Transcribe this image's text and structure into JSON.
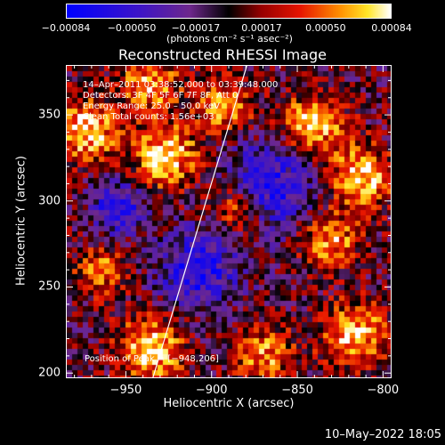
{
  "chart_data": {
    "type": "heatmap",
    "title": "Reconstructed RHESSI Image",
    "xlabel": "Heliocentric X (arcsec)",
    "ylabel": "Heliocentric Y (arcsec)",
    "xlim": [
      -985,
      -795
    ],
    "ylim": [
      197,
      379
    ],
    "x_ticks": [
      -950,
      -900,
      -850,
      -800
    ],
    "x_tick_labels": [
      "−950",
      "−900",
      "−850",
      "−800"
    ],
    "y_ticks": [
      200,
      250,
      300,
      350
    ],
    "y_tick_labels": [
      "200",
      "250",
      "300",
      "350"
    ],
    "colorbar": {
      "colormap": "blue-purple-red-yellow-white",
      "range": [
        -0.00084,
        0.00084
      ],
      "tick_values": [
        -0.00084,
        -0.0005,
        -0.00017,
        0.00017,
        0.0005,
        0.00084
      ],
      "tick_labels": [
        "−0.00084",
        "−0.00050",
        "−0.00017",
        "0.00017",
        "0.00050",
        "0.00084"
      ],
      "units_text": "(photons cm⁻² s⁻¹ asec⁻²)"
    },
    "annotations": {
      "time": "14–Apr–2011 03:38:52.000 to 03:39:48.000",
      "detectors": "Detectors: 3F 4F 5F 6F 7F 8F, Att 0",
      "energy": "Energy Range: 25.0 – 50.0 keV",
      "clean": "Clean     Total counts: 1.56e+03",
      "peak": "Position of Peak = [−948,206]"
    },
    "limb_line": {
      "x": [
        -935,
        -880
      ],
      "y": [
        197,
        379
      ]
    },
    "colors": {
      "background": "#000000",
      "foreground": "#ffffff"
    }
  },
  "footer": {
    "date": "10–May–2022 18:05"
  }
}
